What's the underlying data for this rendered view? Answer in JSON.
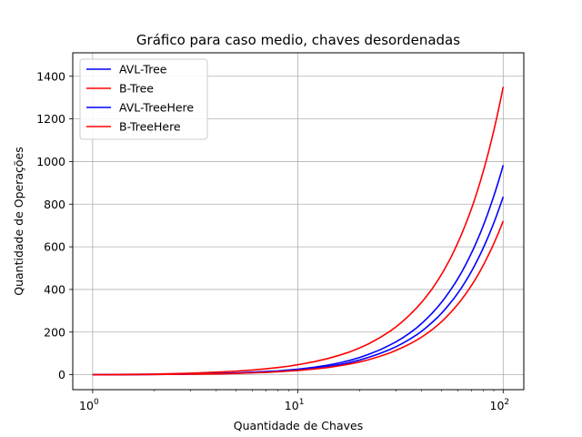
{
  "chart_data": {
    "type": "line",
    "title": "Gráfico para caso medio, chaves desordenadas",
    "xlabel": "Quantidade de Chaves",
    "ylabel": "Quantidade de Operações",
    "xscale": "log",
    "xlim": [
      0.8,
      126
    ],
    "ylim": [
      -70,
      1510
    ],
    "xticks": [
      1,
      10,
      100
    ],
    "xtick_labels": [
      "10^0",
      "10^1",
      "10^2"
    ],
    "yticks": [
      0,
      200,
      400,
      600,
      800,
      1000,
      1200,
      1400
    ],
    "grid": true,
    "legend_position": "top-left",
    "x": [
      1,
      2,
      3,
      4,
      5,
      6,
      7,
      8,
      9,
      10,
      12,
      14,
      16,
      18,
      20,
      22,
      25,
      28,
      30,
      32,
      35,
      38,
      40,
      42,
      45,
      48,
      50,
      52,
      55,
      58,
      60,
      62,
      65,
      68,
      70,
      72,
      75,
      78,
      80,
      82,
      85,
      88,
      90,
      92,
      95,
      98,
      100
    ],
    "series": [
      {
        "name": "AVL-Tree",
        "color": "#0000ff",
        "values": [
          0,
          2,
          4,
          6,
          9,
          12,
          15,
          18,
          22,
          26,
          35,
          45,
          56,
          68,
          81,
          95,
          116,
          139,
          154,
          170,
          195,
          221,
          240,
          259,
          288,
          318,
          339,
          360,
          393,
          426,
          449,
          472,
          508,
          545,
          570,
          595,
          634,
          673,
          700,
          727,
          768,
          810,
          838,
          866,
          909,
          953,
          983
        ]
      },
      {
        "name": "B-Tree",
        "color": "#ff0000",
        "values": [
          0,
          3,
          7,
          12,
          17,
          22,
          28,
          34,
          40,
          47,
          61,
          76,
          92,
          108,
          126,
          144,
          173,
          203,
          224,
          246,
          280,
          315,
          339,
          364,
          402,
          442,
          470,
          498,
          541,
          586,
          617,
          648,
          696,
          745,
          778,
          812,
          864,
          918,
          955,
          992,
          1048,
          1106,
          1145,
          1185,
          1246,
          1308,
          1350
        ]
      },
      {
        "name": "AVL-TreeHere",
        "color": "#0000ff",
        "values": [
          0,
          1,
          3,
          5,
          7,
          9,
          12,
          15,
          18,
          22,
          30,
          38,
          48,
          58,
          69,
          81,
          99,
          118,
          131,
          145,
          166,
          188,
          204,
          220,
          245,
          270,
          288,
          306,
          334,
          362,
          382,
          401,
          432,
          463,
          484,
          506,
          539,
          572,
          595,
          618,
          653,
          688,
          712,
          736,
          773,
          810,
          835
        ]
      },
      {
        "name": "B-TreeHere",
        "color": "#ff0000",
        "values": [
          0,
          1,
          3,
          4,
          6,
          9,
          11,
          14,
          17,
          20,
          27,
          34,
          42,
          51,
          60,
          70,
          86,
          102,
          114,
          126,
          144,
          163,
          176,
          190,
          211,
          233,
          248,
          264,
          288,
          313,
          330,
          347,
          373,
          400,
          418,
          437,
          465,
          494,
          514,
          534,
          564,
          594,
          615,
          636,
          667,
          700,
          721
        ]
      }
    ]
  }
}
